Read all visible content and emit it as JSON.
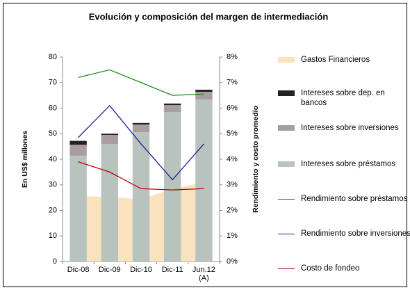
{
  "chart_data": {
    "type": "bar",
    "title": "Evolución y composición del margen de intermediación",
    "categories": [
      "Dic-08",
      "Dic-09",
      "Dic-10",
      "Dic-11",
      "Jun.12 (A)"
    ],
    "ylabel": "En US$ millones",
    "y2label": "Rendimiento y costo promedio",
    "ylim": [
      0,
      80
    ],
    "yticks": [
      0,
      10,
      20,
      30,
      40,
      50,
      60,
      70,
      80
    ],
    "y2lim": [
      0,
      8
    ],
    "y2ticks": [
      {
        "value": 0,
        "label": "0%"
      },
      {
        "value": 1,
        "label": "1%"
      },
      {
        "value": 2,
        "label": "2%"
      },
      {
        "value": 3,
        "label": "3%"
      },
      {
        "value": 4,
        "label": "4%"
      },
      {
        "value": 5,
        "label": "5%"
      },
      {
        "value": 6,
        "label": "6%"
      },
      {
        "value": 7,
        "label": "7%"
      },
      {
        "value": 8,
        "label": "8%"
      }
    ],
    "stacked": true,
    "series": [
      {
        "name": "Gastos Financieros",
        "type": "area",
        "color": "#f9e2bd",
        "values": [
          25.5,
          25.3,
          24.3,
          28.5,
          31.0
        ]
      },
      {
        "name": "Intereses sobre dep. en bancos",
        "type": "bar",
        "color": "#222222",
        "values": [
          1.5,
          0.5,
          0.6,
          0.6,
          0.8
        ]
      },
      {
        "name": "Intereses sobre inversiones",
        "type": "bar",
        "color": "#a89ea1",
        "values": [
          4.3,
          3.5,
          3.0,
          2.7,
          3.0
        ]
      },
      {
        "name": "Intereses sobre préstamos",
        "type": "bar",
        "color": "#b9c3bd",
        "values": [
          41.4,
          46.0,
          50.6,
          58.5,
          63.4
        ]
      },
      {
        "name": "Rendimiento sobre préstamos",
        "type": "line",
        "axis": "y2",
        "color": "#1d8a1d",
        "values": [
          7.2,
          7.5,
          7.0,
          6.5,
          6.55
        ]
      },
      {
        "name": "Rendimiento sobre inversiones",
        "type": "line",
        "axis": "y2",
        "color": "#1a1a9c",
        "values": [
          4.85,
          6.1,
          4.6,
          3.2,
          4.6
        ]
      },
      {
        "name": "Costo de fondeo",
        "type": "line",
        "axis": "y2",
        "color": "#c00000",
        "values": [
          3.9,
          3.5,
          2.85,
          2.8,
          2.85
        ]
      }
    ]
  }
}
